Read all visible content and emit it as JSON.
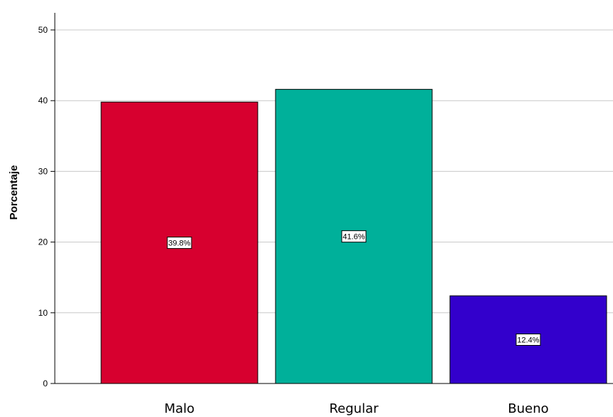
{
  "chart_data": {
    "type": "bar",
    "categories": [
      "Malo",
      "Regular",
      "Bueno"
    ],
    "values": [
      39.8,
      41.6,
      12.4
    ],
    "data_labels": [
      "39.8%",
      "41.6%",
      "12.4%"
    ],
    "colors": [
      "#d7002f",
      "#00b09a",
      "#3300cc"
    ],
    "title": "",
    "xlabel": "",
    "ylabel": "Porcentaje",
    "ylim": [
      0,
      50
    ],
    "yticks": [
      "0",
      "10",
      "20",
      "30",
      "40",
      "50"
    ],
    "grid": true,
    "legend": "none"
  }
}
